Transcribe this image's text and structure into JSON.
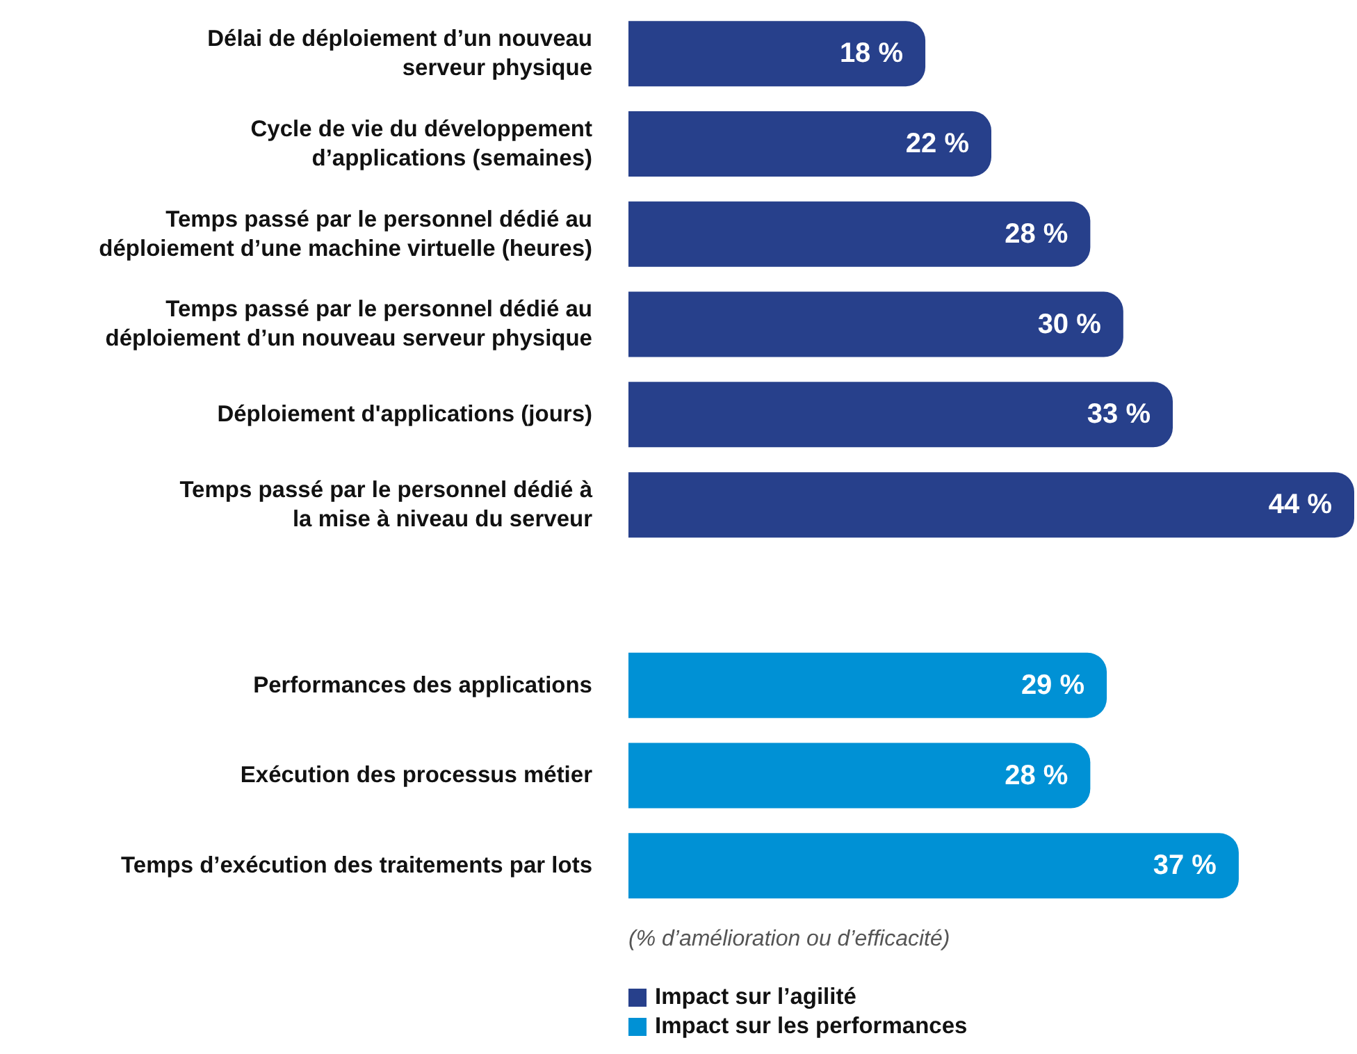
{
  "chart_data": {
    "type": "bar",
    "orientation": "horizontal",
    "stacked": true,
    "categories": [
      "Délai de déploiement d’un nouveau\nserveur physique",
      "Cycle de vie du développement\nd’applications (semaines)",
      "Temps passé par le personnel dédié au\ndéploiement d’une machine virtuelle (heures)",
      "Temps passé par le personnel dédié au\ndéploiement d’un nouveau serveur physique",
      "Déploiement d'applications (jours)",
      "Temps passé par le personnel dédié à\nla mise à niveau du serveur",
      null,
      "Performances des applications",
      "Exécution des processus métier",
      "Temps d’exécution des traitements par lots"
    ],
    "series": [
      {
        "name": "Impact sur l’agilité",
        "color": "#27408b",
        "values": [
          18,
          22,
          28,
          30,
          33,
          44,
          null,
          null,
          null,
          null
        ],
        "value_labels": [
          "18 %",
          "22 %",
          "28 %",
          "30 %",
          "33 %",
          "44 %",
          null,
          null,
          null,
          null
        ]
      },
      {
        "name": "Impact sur les performances",
        "color": "#0091d5",
        "values": [
          null,
          null,
          null,
          null,
          null,
          null,
          null,
          29,
          28,
          37
        ],
        "value_labels": [
          null,
          null,
          null,
          null,
          null,
          null,
          null,
          "29 %",
          "28 %",
          "37 %"
        ]
      }
    ],
    "annotations": [
      "(% d’amélioration ou d’efficacité)"
    ],
    "legend": "bottom"
  }
}
